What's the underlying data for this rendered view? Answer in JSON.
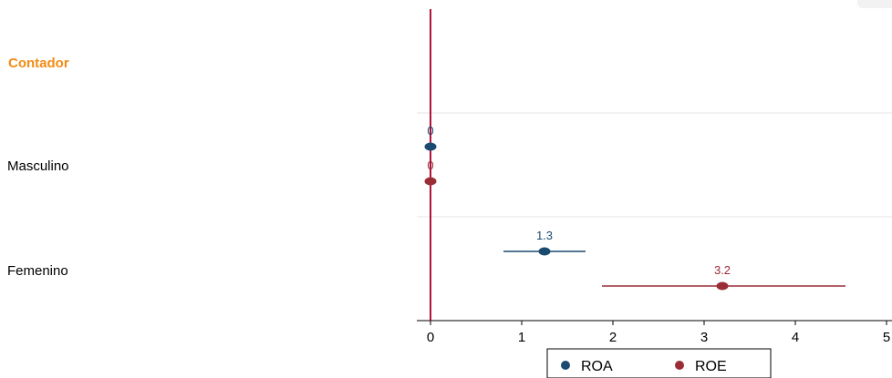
{
  "chart_data": {
    "type": "scatter",
    "subtype": "coefficient-plot",
    "header": "Contador",
    "header_color": "#f28c14",
    "categories": [
      "Masculino",
      "Femenino"
    ],
    "series": [
      {
        "name": "ROA",
        "color": "#1a4a70",
        "points": [
          {
            "category": "Masculino",
            "value": 0,
            "ci": null,
            "label": "0"
          },
          {
            "category": "Femenino",
            "value": 1.25,
            "ci": [
              0.8,
              1.7
            ],
            "label": "1.3"
          }
        ]
      },
      {
        "name": "ROE",
        "color": "#9b2d36",
        "points": [
          {
            "category": "Masculino",
            "value": 0,
            "ci": null,
            "label": "0"
          },
          {
            "category": "Femenino",
            "value": 3.2,
            "ci": [
              1.88,
              4.55
            ],
            "label": "3.2"
          }
        ]
      }
    ],
    "xlim": [
      0,
      5
    ],
    "xticks": [
      "0",
      "1",
      "2",
      "3",
      "4",
      "5"
    ],
    "reference_line": {
      "value": 0,
      "color": "#b0123a"
    },
    "grid": "horizontal-separators",
    "legend": {
      "position": "bottom-center",
      "entries": [
        "ROA",
        "ROE"
      ]
    }
  }
}
